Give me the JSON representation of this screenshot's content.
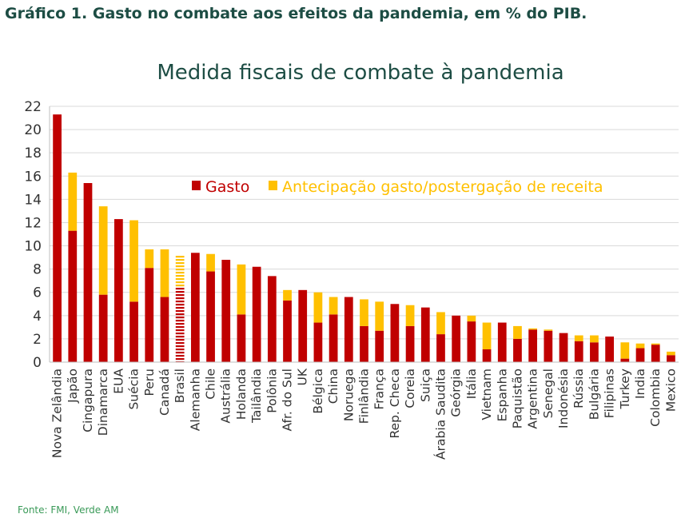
{
  "figure_caption": "Gráfico 1. Gasto no combate aos efeitos da pandemia, em % do PIB.",
  "source_note": "Fonte: FMI, Verde AM",
  "colors": {
    "gasto": "#c00000",
    "antecipacao": "#ffc000",
    "title": "#1d4d44",
    "source": "#3a9a58",
    "grid": "#d9d9d9"
  },
  "chart_data": {
    "type": "bar",
    "stacked": true,
    "title": "Medida fiscais de combate à pandemia",
    "xlabel": "",
    "ylabel": "",
    "ylim": [
      0,
      22
    ],
    "yticks": [
      0,
      2,
      4,
      6,
      8,
      10,
      12,
      14,
      16,
      18,
      20,
      22
    ],
    "grid": true,
    "legend_position": "top-center",
    "categories": [
      "Nova Zelândia",
      "Japão",
      "Cingapura",
      "Dinamarca",
      "EUA",
      "Suécia",
      "Peru",
      "Canadá",
      "Brasil",
      "Alemanha",
      "Chile",
      "Austrália",
      "Holanda",
      "Tailândia",
      "Polônia",
      "Afr. do Sul",
      "UK",
      "Bélgica",
      "China",
      "Noruega",
      "Finlândia",
      "França",
      "Rep. Checa",
      "Coreia",
      "Suiça",
      "Árabia Saudita",
      "Geórgia",
      "Itália",
      "Vietnam",
      "Espanha",
      "Paquistão",
      "Argentina",
      "Senegal",
      "Indonésia",
      "Rússia",
      "Bulgária",
      "Filipinas",
      "Turkey",
      "India",
      "Colombia",
      "Mexico"
    ],
    "series": [
      {
        "name": "Gasto",
        "values": [
          21.3,
          11.3,
          15.4,
          5.8,
          12.3,
          5.2,
          8.1,
          5.6,
          6.4,
          9.4,
          7.8,
          8.8,
          4.1,
          8.2,
          7.4,
          5.3,
          6.2,
          3.4,
          4.1,
          5.6,
          3.1,
          2.7,
          5.0,
          3.1,
          4.7,
          2.4,
          4.0,
          3.5,
          1.1,
          3.4,
          2.0,
          2.8,
          2.7,
          2.5,
          1.8,
          1.7,
          2.2,
          0.3,
          1.2,
          1.5,
          0.6
        ]
      },
      {
        "name": "Antecipação gasto/postergação de receita",
        "values": [
          0.0,
          5.0,
          0.0,
          7.6,
          0.0,
          7.0,
          1.6,
          4.1,
          2.8,
          0.0,
          1.5,
          0.0,
          4.3,
          0.0,
          0.0,
          0.9,
          0.0,
          2.6,
          1.5,
          0.0,
          2.3,
          2.5,
          0.0,
          1.8,
          0.0,
          1.9,
          0.0,
          0.5,
          2.3,
          0.0,
          1.1,
          0.1,
          0.1,
          0.0,
          0.5,
          0.6,
          0.0,
          1.4,
          0.4,
          0.1,
          0.3
        ]
      }
    ],
    "hatched_category": "Brasil"
  }
}
